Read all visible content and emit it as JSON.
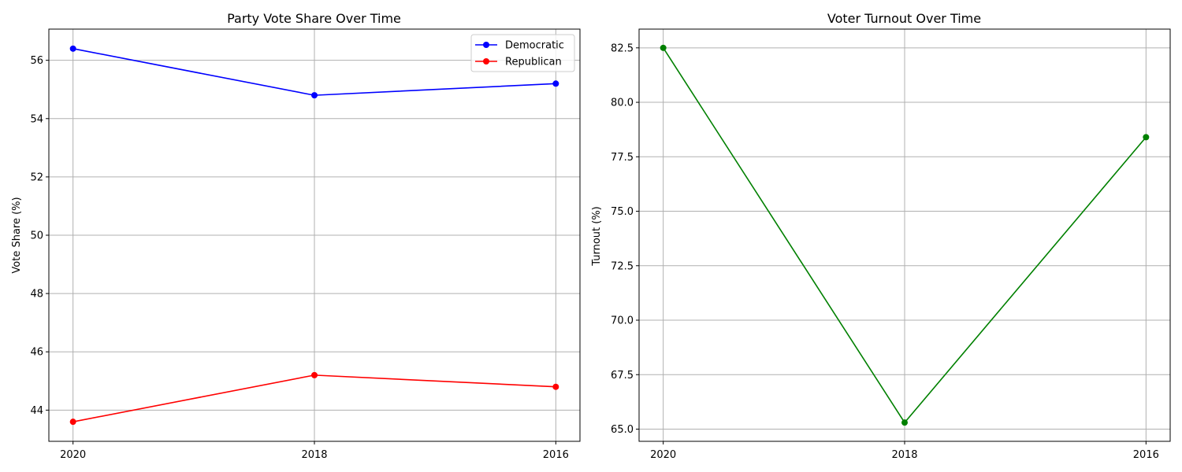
{
  "chart_data": [
    {
      "type": "line",
      "title": "Party Vote Share Over Time",
      "xlabel": "",
      "ylabel": "Vote Share (%)",
      "categories": [
        "2020",
        "2018",
        "2016"
      ],
      "ylim": [
        42.93,
        57.07
      ],
      "yticks": [
        44,
        46,
        48,
        50,
        52,
        54,
        56
      ],
      "grid": true,
      "legend": "top-right",
      "series": [
        {
          "name": "Democratic",
          "color": "#0000ff",
          "values": [
            56.4,
            54.8,
            55.2
          ]
        },
        {
          "name": "Republican",
          "color": "#ff0000",
          "values": [
            43.6,
            45.2,
            44.8
          ]
        }
      ]
    },
    {
      "type": "line",
      "title": "Voter Turnout Over Time",
      "xlabel": "",
      "ylabel": "Turnout (%)",
      "categories": [
        "2020",
        "2018",
        "2016"
      ],
      "ylim": [
        64.44,
        83.36
      ],
      "yticks": [
        "65.0",
        "67.5",
        "70.0",
        "72.5",
        "75.0",
        "77.5",
        "80.0",
        "82.5"
      ],
      "grid": true,
      "series": [
        {
          "color": "#008000",
          "values": [
            82.5,
            65.3,
            78.4
          ]
        }
      ]
    }
  ]
}
